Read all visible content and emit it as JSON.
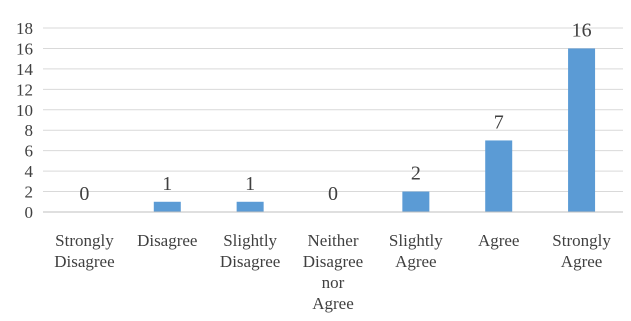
{
  "chart_data": {
    "type": "bar",
    "categories": [
      [
        "Strongly",
        "Disagree"
      ],
      [
        "Disagree"
      ],
      [
        "Slightly",
        "Disagree"
      ],
      [
        "Neither",
        "Disagree",
        "nor",
        "Agree"
      ],
      [
        "Slightly",
        "Agree"
      ],
      [
        "Agree"
      ],
      [
        "Strongly",
        "Agree"
      ]
    ],
    "values": [
      0,
      1,
      1,
      0,
      2,
      7,
      16
    ],
    "data_labels": [
      "0",
      "1",
      "1",
      "0",
      "2",
      "7",
      "16"
    ],
    "ylim": [
      0,
      18
    ],
    "yticks": [
      0,
      2,
      4,
      6,
      8,
      10,
      12,
      14,
      16,
      18
    ],
    "grid": true,
    "legend": "none",
    "bar_color": "#5b9bd5",
    "title": "",
    "xlabel": "",
    "ylabel": ""
  }
}
